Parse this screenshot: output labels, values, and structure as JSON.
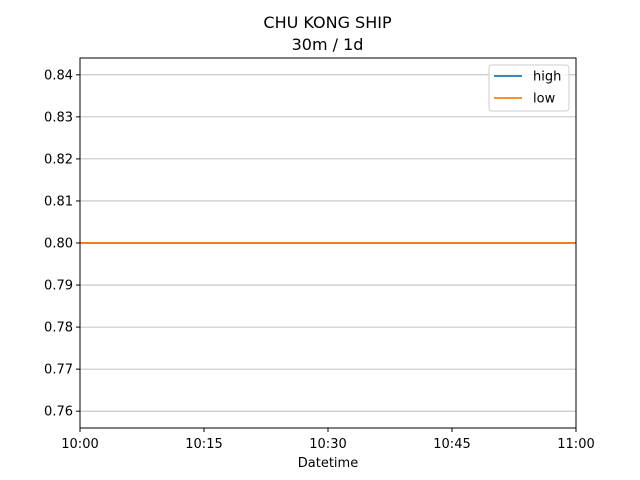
{
  "chart_data": {
    "type": "line",
    "title": "CHU KONG SHIP",
    "subtitle": "30m / 1d",
    "xlabel": "Datetime",
    "ylabel": "",
    "x": [
      "10:00",
      "10:15",
      "10:30",
      "10:45",
      "11:00"
    ],
    "xlim": [
      "10:00",
      "11:00"
    ],
    "ylim": [
      0.756,
      0.844
    ],
    "y_ticks": [
      "0.76",
      "0.77",
      "0.78",
      "0.79",
      "0.80",
      "0.81",
      "0.82",
      "0.83",
      "0.84"
    ],
    "grid": "horizontal",
    "legend_position": "top-right",
    "series": [
      {
        "name": "high",
        "color": "#1f77b4",
        "values": [
          0.8,
          0.8,
          0.8,
          0.8,
          0.8
        ]
      },
      {
        "name": "low",
        "color": "#ff7f0e",
        "values": [
          0.8,
          0.8,
          0.8,
          0.8,
          0.8
        ]
      }
    ]
  }
}
